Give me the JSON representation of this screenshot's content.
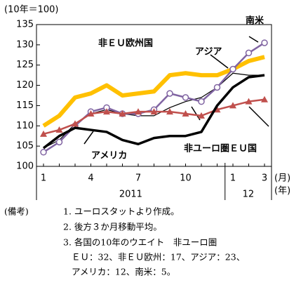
{
  "chart_data": {
    "type": "line",
    "y_unit": "(10年＝100)",
    "x_unit": "(月)",
    "year_unit": "(年)",
    "categories": [
      "1",
      null,
      null,
      "4",
      null,
      null,
      "7",
      null,
      null,
      "10",
      null,
      null,
      "1",
      null,
      "3"
    ],
    "years": [
      "2011",
      "12"
    ],
    "ylim": [
      100,
      135
    ],
    "yticks": [
      100,
      105,
      110,
      115,
      120,
      125,
      130,
      135
    ],
    "series": [
      {
        "name": "非ＥＵ欧州国",
        "color": "#ffc000",
        "values": [
          110,
          112.5,
          117,
          118,
          120,
          117.5,
          118,
          118.5,
          122.5,
          123,
          122.5,
          122.5,
          124,
          126,
          127
        ]
      },
      {
        "name": "アジア",
        "color": "#000000",
        "values": [
          104.5,
          106.5,
          110.5,
          113,
          114,
          113,
          112.5,
          112.5,
          114.5,
          116,
          117,
          119.5,
          123,
          122.5,
          122.5
        ]
      },
      {
        "name": "南米",
        "color": "#8064a2",
        "values": [
          103.5,
          106,
          110,
          113.5,
          114.5,
          113,
          113,
          114,
          118,
          117,
          116,
          119.5,
          124,
          128,
          130.5
        ]
      },
      {
        "name": "非ユーロ圏ＥＵ国",
        "color": "#c0504d",
        "values": [
          108,
          109,
          110.5,
          113,
          113.5,
          113,
          113.5,
          113.5,
          113.5,
          113,
          112.5,
          114,
          115,
          116,
          116.5
        ]
      },
      {
        "name": "アメリカ",
        "color": "#000000",
        "values": [
          104.5,
          107.5,
          109.5,
          109,
          108.5,
          106.5,
          105.5,
          107,
          107.5,
          107.5,
          108.5,
          115,
          119.5,
          122,
          122.5
        ]
      }
    ],
    "notes": [
      "(備考)",
      "1. ユーロスタットより作成。",
      "2. 後方３か月移動平均。",
      "3. 各国の10年のウエイト　非ユーロ圏",
      "ＥＵ：32、非ＥＵ欧州：17、アジア：23、",
      "アメリカ：12、南米：5。"
    ]
  }
}
